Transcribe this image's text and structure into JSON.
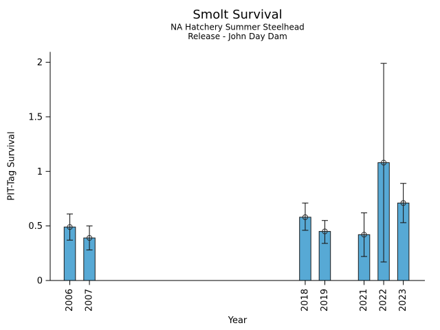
{
  "chart_data": {
    "type": "bar",
    "title": "Smolt Survival",
    "subtitle_lines": [
      "NA Hatchery Summer Steelhead",
      "Release - John Day Dam"
    ],
    "xlabel": "Year",
    "ylabel": "PIT-Tag Survival",
    "categories": [
      2006,
      2007,
      2018,
      2019,
      2021,
      2022,
      2023
    ],
    "values": [
      0.49,
      0.39,
      0.58,
      0.45,
      0.42,
      1.08,
      0.71
    ],
    "error_low": [
      0.37,
      0.28,
      0.46,
      0.34,
      0.22,
      0.17,
      0.53
    ],
    "error_high": [
      0.61,
      0.5,
      0.71,
      0.55,
      0.62,
      1.99,
      0.89
    ],
    "xlim": [
      2005,
      2024.1
    ],
    "ylim": [
      0,
      2.095
    ],
    "yticks": [
      0,
      0.5,
      1,
      1.5,
      2
    ],
    "ytick_labels": [
      "0",
      "0.5",
      "1",
      "1.5",
      "2"
    ],
    "marker": "circle-plus",
    "grid": false,
    "legend_position": "none",
    "colors": {
      "bar_fill": "#57a9d5",
      "bar_edge": "#1a1a1a",
      "error_bar": "#1a1a1a",
      "marker_stroke": "#2a2a2a",
      "axis": "#000000",
      "text": "#000000",
      "background": "#ffffff"
    }
  }
}
